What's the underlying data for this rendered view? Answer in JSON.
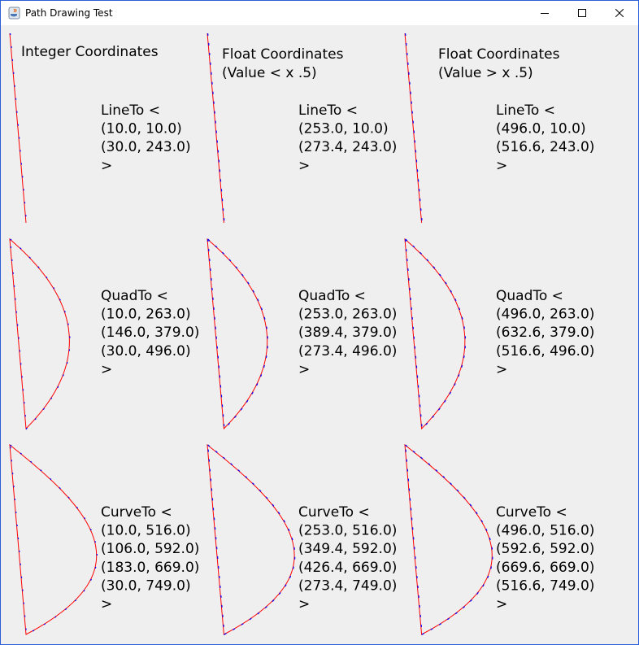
{
  "window": {
    "title": "Path Drawing Test",
    "icon": "java-cup-icon",
    "controls": [
      "minimize-icon",
      "maximize-icon",
      "close-icon"
    ]
  },
  "colors": {
    "stroke": "#ff0000",
    "stroke_alt": "#0000ff",
    "background": "#efefef",
    "border": "#2b5fd9"
  },
  "columns": [
    {
      "heading": [
        "Integer Coordinates"
      ],
      "blocks": [
        {
          "op": "LineTo <",
          "points": [
            "(10.0, 10.0)",
            "(30.0, 243.0)"
          ],
          "close": ">"
        },
        {
          "op": "QuadTo <",
          "points": [
            "(10.0, 263.0)",
            "(146.0, 379.0)",
            "(30.0, 496.0)"
          ],
          "close": ">"
        },
        {
          "op": "CurveTo <",
          "points": [
            "(10.0, 516.0)",
            "(106.0, 592.0)",
            "(183.0, 669.0)",
            "(30.0, 749.0)"
          ],
          "close": ">"
        }
      ]
    },
    {
      "heading": [
        "Float Coordinates",
        "(Value < x .5)"
      ],
      "blocks": [
        {
          "op": "LineTo <",
          "points": [
            "(253.0, 10.0)",
            "(273.4, 243.0)"
          ],
          "close": ">"
        },
        {
          "op": "QuadTo <",
          "points": [
            "(253.0, 263.0)",
            "(389.4, 379.0)",
            "(273.4, 496.0)"
          ],
          "close": ">"
        },
        {
          "op": "CurveTo <",
          "points": [
            "(253.0, 516.0)",
            "(349.4, 592.0)",
            "(426.4, 669.0)",
            "(273.4, 749.0)"
          ],
          "close": ">"
        }
      ]
    },
    {
      "heading": [
        "Float Coordinates",
        "(Value > x .5)"
      ],
      "blocks": [
        {
          "op": "LineTo <",
          "points": [
            "(496.0, 10.0)",
            "(516.6, 243.0)"
          ],
          "close": ">"
        },
        {
          "op": "QuadTo <",
          "points": [
            "(496.0, 263.0)",
            "(632.6, 379.0)",
            "(516.6, 496.0)"
          ],
          "close": ">"
        },
        {
          "op": "CurveTo <",
          "points": [
            "(496.0, 516.0)",
            "(592.6, 592.0)",
            "(669.6, 669.0)",
            "(516.6, 749.0)"
          ],
          "close": ">"
        }
      ]
    }
  ]
}
